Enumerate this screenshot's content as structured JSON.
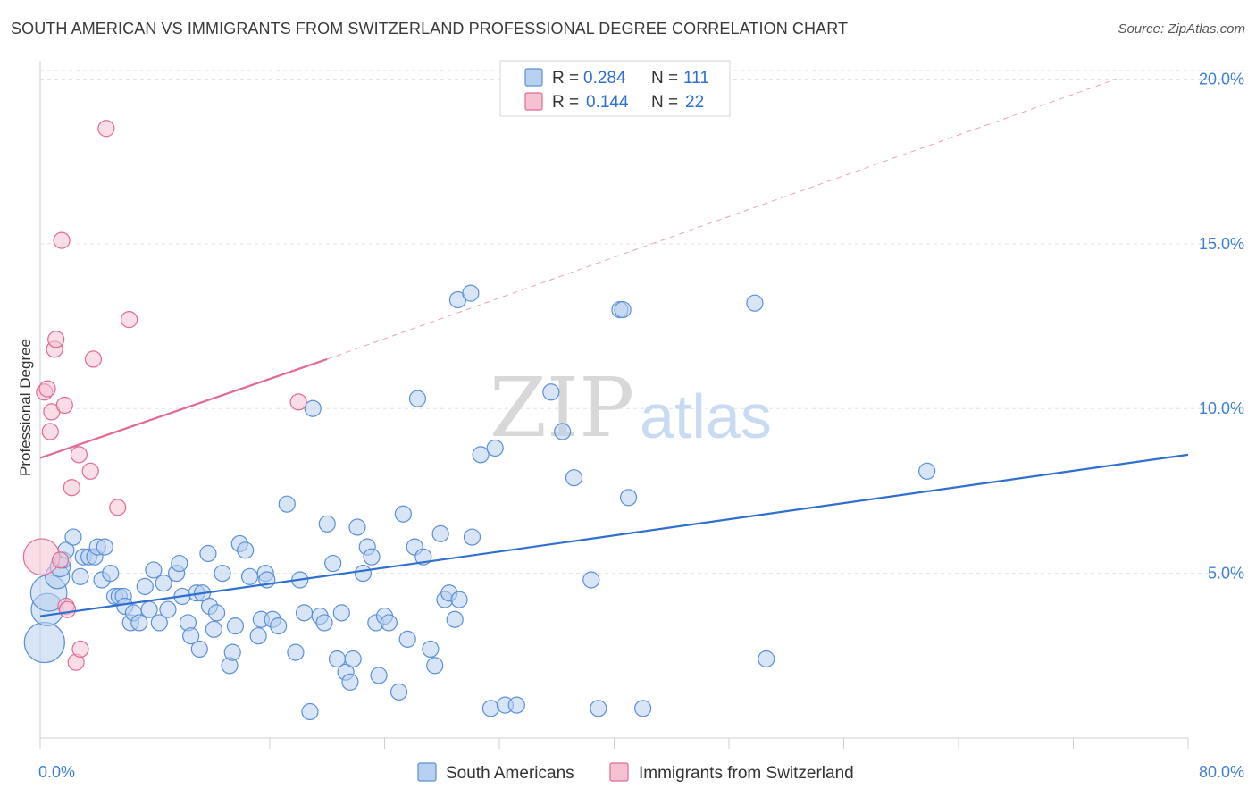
{
  "title": "SOUTH AMERICAN VS IMMIGRANTS FROM SWITZERLAND PROFESSIONAL DEGREE CORRELATION CHART",
  "source": "Source: ZipAtlas.com",
  "watermark": {
    "zip": "ZIP",
    "atlas": "atlas"
  },
  "colors": {
    "blue": "#5b8fd6",
    "blue_fill": "#b8d0f0",
    "pink": "#e26a93",
    "pink_fill": "#f6c2d2",
    "tick": "#3d7fd4"
  },
  "legend": {
    "items": [
      {
        "r_label": "R =",
        "r_value": "0.284",
        "n_label": "N =",
        "n_value": "111"
      },
      {
        "r_label": "R =",
        "r_value": "0.144",
        "n_label": "N =",
        "n_value": "22"
      }
    ]
  },
  "bottom_legend": [
    "South Americans",
    "Immigrants from Switzerland"
  ],
  "chart_data": {
    "type": "scatter",
    "title": "SOUTH AMERICAN VS IMMIGRANTS FROM SWITZERLAND PROFESSIONAL DEGREE CORRELATION CHART",
    "xlabel": "",
    "ylabel": "Professional Degree",
    "xlim": [
      0,
      80
    ],
    "ylim": [
      0,
      20.5
    ],
    "x_tick_labels": [
      "0.0%",
      "80.0%"
    ],
    "y_ticks": [
      5,
      10,
      15,
      20
    ],
    "y_tick_labels": [
      "5.0%",
      "10.0%",
      "15.0%",
      "20.0%"
    ],
    "grid": true,
    "legend_position": "top-center",
    "series": [
      {
        "name": "South Americans",
        "trend": {
          "x": [
            0,
            80
          ],
          "y": [
            3.7,
            8.6
          ],
          "style": "solid"
        },
        "points": [
          [
            0.3,
            2.9,
            2.0
          ],
          [
            0.5,
            3.9,
            1.6
          ],
          [
            0.6,
            4.4,
            1.8
          ],
          [
            1.2,
            4.9,
            1.2
          ],
          [
            1.4,
            5.2,
            1.0
          ],
          [
            1.6,
            5.4,
            0.8
          ],
          [
            1.8,
            5.7,
            0.8
          ],
          [
            2.3,
            6.1,
            0.8
          ],
          [
            2.8,
            4.9,
            0.8
          ],
          [
            3.0,
            5.5,
            0.8
          ],
          [
            3.4,
            5.5,
            0.8
          ],
          [
            3.8,
            5.5,
            0.8
          ],
          [
            4.0,
            5.8,
            0.8
          ],
          [
            4.5,
            5.8,
            0.8
          ],
          [
            4.3,
            4.8,
            0.8
          ],
          [
            4.9,
            5.0,
            0.8
          ],
          [
            5.2,
            4.3,
            0.8
          ],
          [
            5.5,
            4.3,
            0.8
          ],
          [
            5.8,
            4.3,
            0.8
          ],
          [
            5.9,
            4.0,
            0.8
          ],
          [
            6.3,
            3.5,
            0.8
          ],
          [
            6.5,
            3.8,
            0.8
          ],
          [
            6.9,
            3.5,
            0.8
          ],
          [
            7.3,
            4.6,
            0.8
          ],
          [
            7.6,
            3.9,
            0.8
          ],
          [
            7.9,
            5.1,
            0.8
          ],
          [
            8.3,
            3.5,
            0.8
          ],
          [
            8.6,
            4.7,
            0.8
          ],
          [
            8.9,
            3.9,
            0.8
          ],
          [
            9.5,
            5.0,
            0.8
          ],
          [
            9.7,
            5.3,
            0.8
          ],
          [
            9.9,
            4.3,
            0.8
          ],
          [
            10.3,
            3.5,
            0.8
          ],
          [
            10.5,
            3.1,
            0.8
          ],
          [
            10.9,
            4.4,
            0.8
          ],
          [
            11.1,
            2.7,
            0.8
          ],
          [
            11.3,
            4.4,
            0.8
          ],
          [
            11.7,
            5.6,
            0.8
          ],
          [
            11.8,
            4.0,
            0.8
          ],
          [
            12.1,
            3.3,
            0.8
          ],
          [
            12.3,
            3.8,
            0.8
          ],
          [
            12.7,
            5.0,
            0.8
          ],
          [
            13.2,
            2.2,
            0.8
          ],
          [
            13.4,
            2.6,
            0.8
          ],
          [
            13.6,
            3.4,
            0.8
          ],
          [
            13.9,
            5.9,
            0.8
          ],
          [
            14.3,
            5.7,
            0.8
          ],
          [
            14.6,
            4.9,
            0.8
          ],
          [
            15.2,
            3.1,
            0.8
          ],
          [
            15.4,
            3.6,
            0.8
          ],
          [
            15.7,
            5.0,
            0.8
          ],
          [
            15.8,
            4.8,
            0.8
          ],
          [
            16.2,
            3.6,
            0.8
          ],
          [
            16.6,
            3.4,
            0.8
          ],
          [
            17.2,
            7.1,
            0.8
          ],
          [
            17.8,
            2.6,
            0.8
          ],
          [
            18.1,
            4.8,
            0.8
          ],
          [
            18.4,
            3.8,
            0.8
          ],
          [
            18.8,
            0.8,
            0.8
          ],
          [
            19.0,
            10.0,
            0.8
          ],
          [
            19.5,
            3.7,
            0.8
          ],
          [
            19.8,
            3.5,
            0.8
          ],
          [
            20.0,
            6.5,
            0.8
          ],
          [
            20.4,
            5.3,
            0.8
          ],
          [
            20.7,
            2.4,
            0.8
          ],
          [
            21.0,
            3.8,
            0.8
          ],
          [
            21.3,
            2.0,
            0.8
          ],
          [
            21.6,
            1.7,
            0.8
          ],
          [
            21.8,
            2.4,
            0.8
          ],
          [
            22.1,
            6.4,
            0.8
          ],
          [
            22.5,
            5.0,
            0.8
          ],
          [
            22.8,
            5.8,
            0.8
          ],
          [
            23.1,
            5.5,
            0.8
          ],
          [
            23.4,
            3.5,
            0.8
          ],
          [
            23.6,
            1.9,
            0.8
          ],
          [
            24.0,
            3.7,
            0.8
          ],
          [
            24.3,
            3.5,
            0.8
          ],
          [
            25.0,
            1.4,
            0.8
          ],
          [
            25.3,
            6.8,
            0.8
          ],
          [
            25.6,
            3.0,
            0.8
          ],
          [
            26.1,
            5.8,
            0.8
          ],
          [
            26.3,
            10.3,
            0.8
          ],
          [
            26.7,
            5.5,
            0.8
          ],
          [
            27.2,
            2.7,
            0.8
          ],
          [
            27.5,
            2.2,
            0.8
          ],
          [
            27.9,
            6.2,
            0.8
          ],
          [
            28.2,
            4.2,
            0.8
          ],
          [
            28.5,
            4.4,
            0.8
          ],
          [
            28.9,
            3.6,
            0.8
          ],
          [
            29.2,
            4.2,
            0.8
          ],
          [
            29.1,
            13.3,
            0.8
          ],
          [
            30.0,
            13.5,
            0.8
          ],
          [
            30.1,
            6.1,
            0.8
          ],
          [
            30.7,
            8.6,
            0.8
          ],
          [
            31.4,
            0.9,
            0.8
          ],
          [
            31.7,
            8.8,
            0.8
          ],
          [
            32.4,
            1.0,
            0.8
          ],
          [
            33.2,
            1.0,
            0.8
          ],
          [
            35.6,
            10.5,
            0.8
          ],
          [
            36.4,
            9.3,
            0.8
          ],
          [
            37.2,
            7.9,
            0.8
          ],
          [
            38.4,
            4.8,
            0.8
          ],
          [
            38.9,
            0.9,
            0.8
          ],
          [
            40.4,
            13.0,
            0.8
          ],
          [
            40.6,
            13.0,
            0.8
          ],
          [
            41.0,
            7.3,
            0.8
          ],
          [
            42.0,
            0.9,
            0.8
          ],
          [
            49.8,
            13.2,
            0.8
          ],
          [
            50.6,
            2.4,
            0.8
          ],
          [
            61.8,
            8.1,
            0.8
          ]
        ]
      },
      {
        "name": "Immigrants from Switzerland",
        "trend": {
          "x": [
            0,
            20
          ],
          "y": [
            8.5,
            11.5
          ],
          "style": "solid",
          "dashed_extension": {
            "x": [
              20,
              75
            ],
            "y": [
              11.5,
              20.0
            ]
          }
        },
        "points": [
          [
            0.1,
            5.5,
            1.8
          ],
          [
            0.3,
            10.5,
            0.8
          ],
          [
            0.5,
            10.6,
            0.8
          ],
          [
            0.7,
            9.3,
            0.8
          ],
          [
            0.8,
            9.9,
            0.8
          ],
          [
            1.0,
            11.8,
            0.8
          ],
          [
            1.1,
            12.1,
            0.8
          ],
          [
            1.4,
            5.4,
            0.8
          ],
          [
            1.5,
            15.1,
            0.8
          ],
          [
            1.7,
            10.1,
            0.8
          ],
          [
            1.8,
            4.0,
            0.8
          ],
          [
            1.9,
            3.9,
            0.8
          ],
          [
            2.2,
            7.6,
            0.8
          ],
          [
            2.5,
            2.3,
            0.8
          ],
          [
            2.7,
            8.6,
            0.8
          ],
          [
            2.8,
            2.7,
            0.8
          ],
          [
            3.5,
            8.1,
            0.8
          ],
          [
            3.7,
            11.5,
            0.8
          ],
          [
            4.6,
            18.5,
            0.8
          ],
          [
            5.4,
            7.0,
            0.8
          ],
          [
            6.2,
            12.7,
            0.8
          ],
          [
            18.0,
            10.2,
            0.8
          ]
        ]
      }
    ]
  }
}
